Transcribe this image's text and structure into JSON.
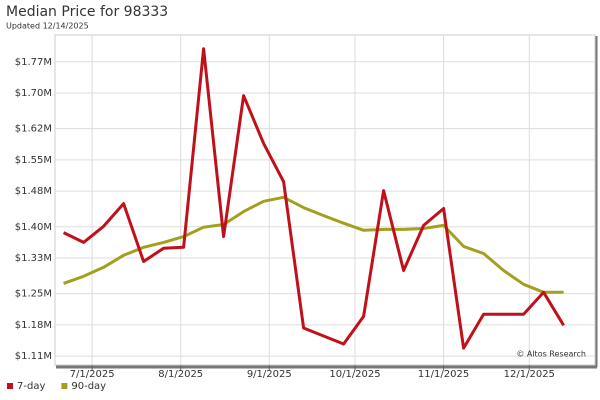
{
  "chart_data": {
    "type": "line",
    "title": "Median Price for 98333",
    "subtitle": "Updated 12/14/2025",
    "annotation": "© Altos Research",
    "x": [
      "2025-06-21",
      "2025-06-28",
      "2025-07-05",
      "2025-07-12",
      "2025-07-19",
      "2025-07-26",
      "2025-08-02",
      "2025-08-09",
      "2025-08-16",
      "2025-08-23",
      "2025-08-30",
      "2025-09-06",
      "2025-09-13",
      "2025-09-20",
      "2025-09-27",
      "2025-10-04",
      "2025-10-11",
      "2025-10-18",
      "2025-10-25",
      "2025-11-01",
      "2025-11-08",
      "2025-11-15",
      "2025-11-22",
      "2025-11-29",
      "2025-12-06",
      "2025-12-13"
    ],
    "series": [
      {
        "name": "7-day",
        "color": "#c0111b",
        "values": [
          1387000,
          1365000,
          1401000,
          1452000,
          1322000,
          1352000,
          1354000,
          1799000,
          1378000,
          1694000,
          1587000,
          1501000,
          1173000,
          1155000,
          1137000,
          1199000,
          1481000,
          1302000,
          1403000,
          1441000,
          1128000,
          1204000,
          1204000,
          1204000,
          1253000,
          1179000
        ]
      },
      {
        "name": "90-day",
        "color": "#a3a01e",
        "values": [
          1273000,
          1289000,
          1309000,
          1336000,
          1354000,
          1365000,
          1378000,
          1399000,
          1405000,
          1434000,
          1457000,
          1466000,
          1443000,
          1425000,
          1408000,
          1392000,
          1394000,
          1394000,
          1396000,
          1403000,
          1356000,
          1340000,
          1302000,
          1271000,
          1253000,
          1253000
        ]
      }
    ],
    "xlim": [
      "2025-06-18",
      "2025-12-24"
    ],
    "xticks": [
      {
        "value": "2025-07-01",
        "label": "7/1/2025"
      },
      {
        "value": "2025-08-01",
        "label": "8/1/2025"
      },
      {
        "value": "2025-09-01",
        "label": "9/1/2025"
      },
      {
        "value": "2025-10-01",
        "label": "10/1/2025"
      },
      {
        "value": "2025-11-01",
        "label": "11/1/2025"
      },
      {
        "value": "2025-12-01",
        "label": "12/1/2025"
      }
    ],
    "ylim": [
      1090000,
      1830000
    ],
    "yticks": [
      {
        "value": 1110000,
        "label": "$1.11M"
      },
      {
        "value": 1180000,
        "label": "$1.18M"
      },
      {
        "value": 1250000,
        "label": "$1.25M"
      },
      {
        "value": 1330000,
        "label": "$1.33M"
      },
      {
        "value": 1400000,
        "label": "$1.40M"
      },
      {
        "value": 1480000,
        "label": "$1.48M"
      },
      {
        "value": 1550000,
        "label": "$1.55M"
      },
      {
        "value": 1620000,
        "label": "$1.62M"
      },
      {
        "value": 1700000,
        "label": "$1.70M"
      },
      {
        "value": 1770000,
        "label": "$1.77M"
      }
    ],
    "grid": true,
    "legend": "bottom-left"
  }
}
